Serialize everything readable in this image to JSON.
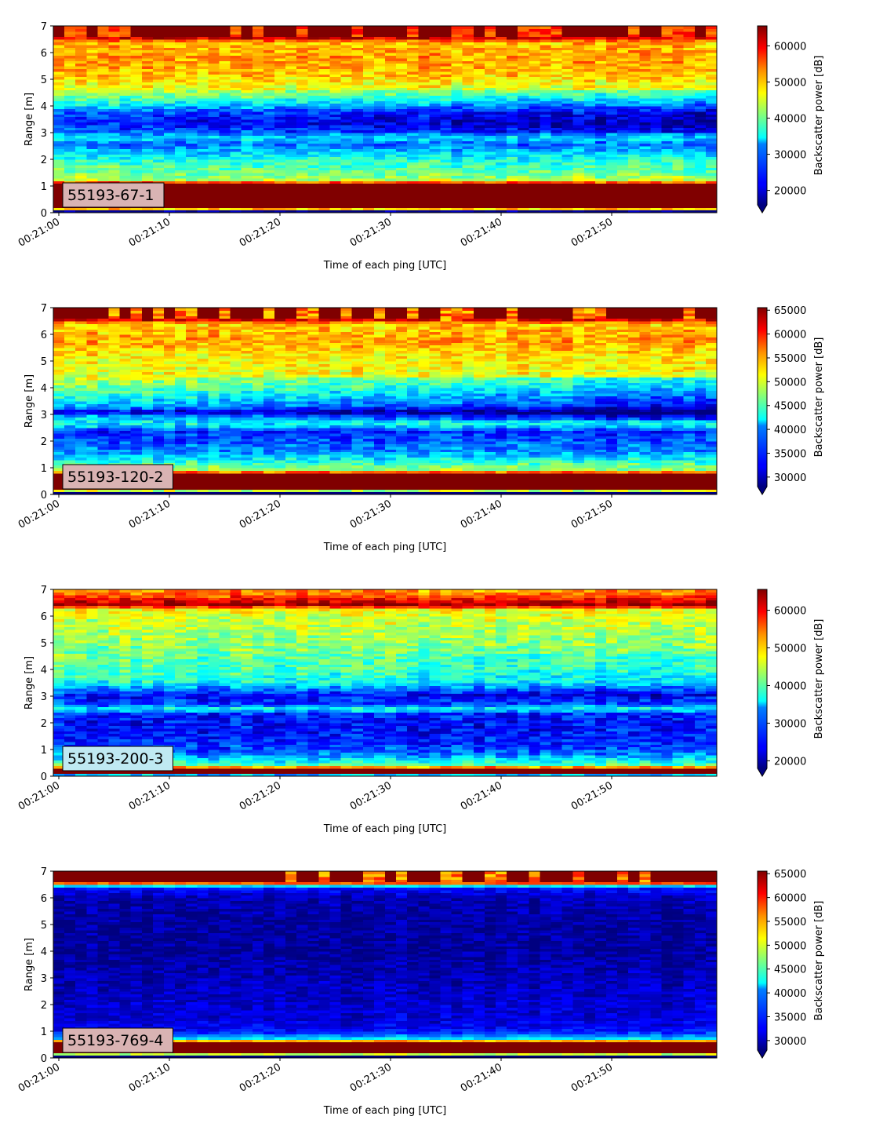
{
  "chart_data": [
    {
      "type": "heatmap",
      "label_box": "55193-67-1",
      "label_box_color": "#d9b3b3",
      "xlabel": "Time of each ping [UTC]",
      "ylabel": "Range [m]",
      "x_tick_labels": [
        "00:21:00",
        "00:21:10",
        "00:21:20",
        "00:21:30",
        "00:21:40",
        "00:21:50"
      ],
      "x_range_seconds": [
        -0.5,
        59.2
      ],
      "y_ticks": [
        0,
        1,
        2,
        3,
        4,
        5,
        6,
        7
      ],
      "ylim": [
        0,
        7
      ],
      "colorbar": {
        "label": "Backscatter power [dB]",
        "ticks": [
          20000,
          30000,
          40000,
          50000,
          60000
        ],
        "range": [
          16000,
          65535
        ],
        "extend": "min"
      },
      "colormap": "jet",
      "range_profile": [
        [
          0.0,
          0
        ],
        [
          0.2,
          65535
        ],
        [
          1.1,
          65535
        ],
        [
          1.2,
          44000
        ],
        [
          1.6,
          39000
        ],
        [
          2.0,
          36000
        ],
        [
          2.3,
          32000
        ],
        [
          2.6,
          27000
        ],
        [
          2.8,
          33000
        ],
        [
          3.0,
          28000
        ],
        [
          3.4,
          23000
        ],
        [
          3.8,
          27000
        ],
        [
          4.1,
          35000
        ],
        [
          4.6,
          45000
        ],
        [
          5.2,
          50000
        ],
        [
          5.8,
          52000
        ],
        [
          6.4,
          50000
        ],
        [
          6.6,
          65535
        ],
        [
          7.0,
          65535
        ]
      ],
      "trend": [
        [
          3.0,
          0
        ],
        [
          4.6,
          -6000
        ]
      ],
      "noise": 4000
    },
    {
      "type": "heatmap",
      "label_box": "55193-120-2",
      "label_box_color": "#d9b3b3",
      "xlabel": "Time of each ping [UTC]",
      "ylabel": "Range [m]",
      "x_tick_labels": [
        "00:21:00",
        "00:21:10",
        "00:21:20",
        "00:21:30",
        "00:21:40",
        "00:21:50"
      ],
      "x_range_seconds": [
        -0.5,
        59.2
      ],
      "y_ticks": [
        0,
        1,
        2,
        3,
        4,
        5,
        6,
        7
      ],
      "ylim": [
        0,
        7
      ],
      "colorbar": {
        "label": "Backscatter power [dB]",
        "ticks": [
          30000,
          35000,
          40000,
          45000,
          50000,
          55000,
          60000,
          65000
        ],
        "range": [
          28000,
          65535
        ],
        "extend": "min"
      },
      "colormap": "jet",
      "range_profile": [
        [
          0.0,
          0
        ],
        [
          0.2,
          65535
        ],
        [
          0.8,
          65535
        ],
        [
          0.9,
          48000
        ],
        [
          1.2,
          44000
        ],
        [
          1.6,
          38000
        ],
        [
          2.0,
          36000
        ],
        [
          2.4,
          34000
        ],
        [
          2.6,
          42000
        ],
        [
          2.9,
          41000
        ],
        [
          3.1,
          32000
        ],
        [
          3.3,
          40000
        ],
        [
          3.6,
          43000
        ],
        [
          4.0,
          47000
        ],
        [
          4.5,
          51000
        ],
        [
          5.2,
          52000
        ],
        [
          5.8,
          55000
        ],
        [
          6.4,
          53000
        ],
        [
          6.6,
          65535
        ],
        [
          7.0,
          65535
        ]
      ],
      "trend": [
        [
          2.8,
          0
        ],
        [
          3.8,
          -8000
        ]
      ],
      "noise": 3000
    },
    {
      "type": "heatmap",
      "label_box": "55193-200-3",
      "label_box_color": "#bfe9f2",
      "xlabel": "Time of each ping [UTC]",
      "ylabel": "Range [m]",
      "x_tick_labels": [
        "00:21:00",
        "00:21:10",
        "00:21:20",
        "00:21:30",
        "00:21:40",
        "00:21:50"
      ],
      "x_range_seconds": [
        -0.5,
        59.2
      ],
      "y_ticks": [
        0,
        1,
        2,
        3,
        4,
        5,
        6,
        7
      ],
      "ylim": [
        0,
        7
      ],
      "colorbar": {
        "label": "Backscatter power [dB]",
        "ticks": [
          20000,
          30000,
          40000,
          50000,
          60000
        ],
        "range": [
          18000,
          65535
        ],
        "extend": "min"
      },
      "colormap": "jet",
      "range_profile": [
        [
          0.0,
          0
        ],
        [
          0.1,
          65535
        ],
        [
          0.3,
          65535
        ],
        [
          0.4,
          40000
        ],
        [
          0.7,
          33000
        ],
        [
          1.0,
          27000
        ],
        [
          1.5,
          25000
        ],
        [
          2.0,
          24000
        ],
        [
          2.4,
          26000
        ],
        [
          2.5,
          38000
        ],
        [
          2.7,
          27000
        ],
        [
          3.0,
          24000
        ],
        [
          3.3,
          31000
        ],
        [
          3.5,
          37000
        ],
        [
          4.0,
          40000
        ],
        [
          4.5,
          41000
        ],
        [
          5.2,
          43000
        ],
        [
          5.8,
          45000
        ],
        [
          6.3,
          48000
        ],
        [
          6.4,
          65535
        ],
        [
          6.8,
          55000
        ],
        [
          7.0,
          52000
        ]
      ],
      "trend": [
        [
          3.0,
          0
        ],
        [
          4.0,
          -3000
        ]
      ],
      "noise": 4000
    },
    {
      "type": "heatmap",
      "label_box": "55193-769-4",
      "label_box_color": "#d9b3b3",
      "xlabel": "Time of each ping [UTC]",
      "ylabel": "Range [m]",
      "x_tick_labels": [
        "00:21:00",
        "00:21:10",
        "00:21:20",
        "00:21:30",
        "00:21:40",
        "00:21:50"
      ],
      "x_range_seconds": [
        -0.5,
        59.2
      ],
      "y_ticks": [
        0,
        1,
        2,
        3,
        4,
        5,
        6,
        7
      ],
      "ylim": [
        0,
        7
      ],
      "colorbar": {
        "label": "Backscatter power [dB]",
        "ticks": [
          30000,
          35000,
          40000,
          45000,
          50000,
          55000,
          60000,
          65000
        ],
        "range": [
          28000,
          65535
        ],
        "extend": "min"
      },
      "colormap": "jet",
      "range_profile": [
        [
          0.0,
          0
        ],
        [
          0.2,
          65535
        ],
        [
          0.6,
          65535
        ],
        [
          0.7,
          43000
        ],
        [
          0.8,
          39000
        ],
        [
          1.0,
          33000
        ],
        [
          1.5,
          31000
        ],
        [
          2.0,
          31000
        ],
        [
          3.0,
          30000
        ],
        [
          4.0,
          29000
        ],
        [
          5.0,
          29000
        ],
        [
          6.0,
          30000
        ],
        [
          6.4,
          33000
        ],
        [
          6.6,
          65535
        ],
        [
          7.0,
          65535
        ]
      ],
      "trend": [
        [
          0.0,
          0
        ],
        [
          0.0,
          0
        ]
      ],
      "noise": 2000
    }
  ]
}
